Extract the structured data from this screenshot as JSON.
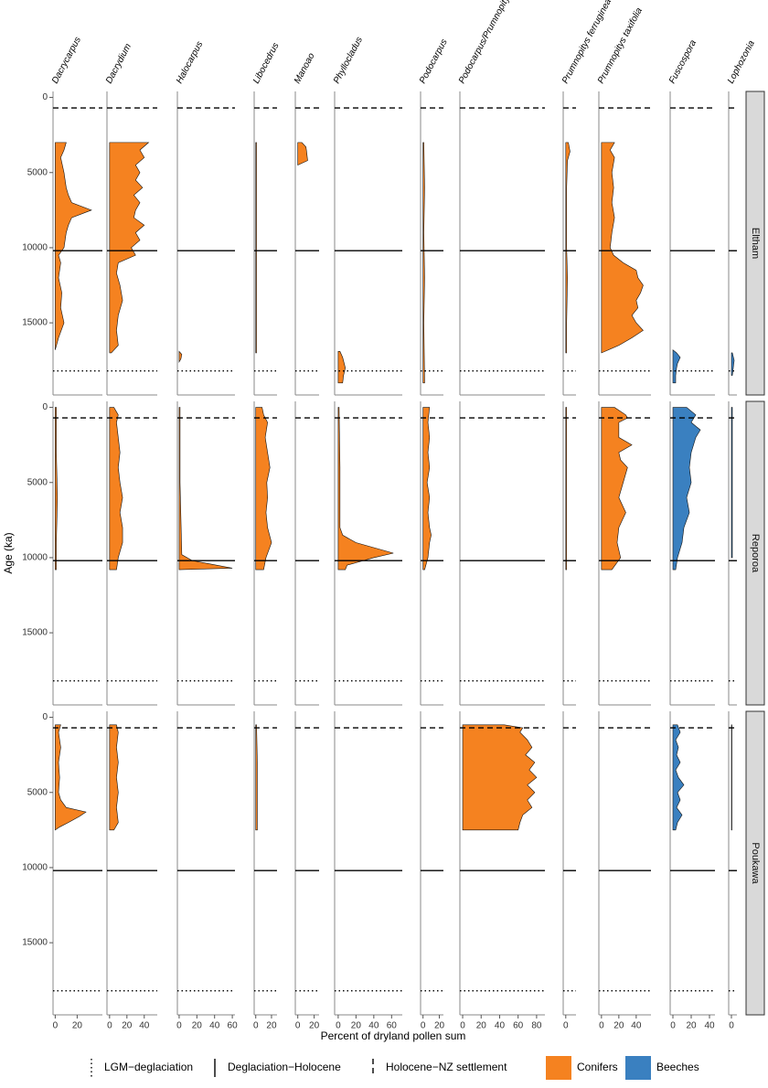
{
  "chart_data": {
    "type": "area",
    "y_label": "Age (ka)",
    "x_label": "Percent of dryland pollen sum",
    "ylim": [
      -400,
      19800
    ],
    "y_reversed": true,
    "yticks": [
      0,
      5000,
      10000,
      15000
    ],
    "boundaries": [
      {
        "name": "LGM−deglaciation",
        "value": 18200,
        "style": "dotted"
      },
      {
        "name": "Deglaciation−Holocene",
        "value": 10200,
        "style": "solid"
      },
      {
        "name": "Holocene−NZ settlement",
        "value": 700,
        "style": "dashed"
      }
    ],
    "legend": [
      {
        "name": "Conifers",
        "color": "#f58220"
      },
      {
        "name": "Beeches",
        "color": "#3a80c0"
      }
    ],
    "taxa": [
      {
        "name": "Dacrycarpus",
        "color": "#f58220",
        "xlim": [
          -2,
          43
        ],
        "xticks": [
          0,
          20
        ]
      },
      {
        "name": "Dacrydium",
        "color": "#f58220",
        "xlim": [
          -3,
          55
        ],
        "xticks": [
          0,
          20,
          40
        ]
      },
      {
        "name": "Halocarpus",
        "color": "#f58220",
        "xlim": [
          -2,
          63
        ],
        "xticks": [
          0,
          20,
          40,
          60
        ]
      },
      {
        "name": "Libocedrus",
        "color": "#f58220",
        "xlim": [
          -2,
          27
        ],
        "xticks": [
          0,
          20
        ]
      },
      {
        "name": "Manoao",
        "color": "#f58220",
        "xlim": [
          -3,
          26
        ],
        "xticks": [
          0,
          20
        ]
      },
      {
        "name": "Phyllocladus",
        "color": "#f58220",
        "xlim": [
          -4,
          72
        ],
        "xticks": [
          0,
          20,
          40,
          60
        ]
      },
      {
        "name": "Podocarpus",
        "color": "#f58220",
        "xlim": [
          -3,
          25
        ],
        "xticks": [
          0,
          20
        ]
      },
      {
        "name": "Podocarpus/Prumnopitys",
        "color": "#f58220",
        "xlim": [
          -3,
          89
        ],
        "xticks": [
          0,
          20,
          40,
          60,
          80
        ]
      },
      {
        "name": "Prumnopitys ferruginea",
        "color": "#f58220",
        "xlim": [
          -3,
          12
        ],
        "xticks": [
          0
        ]
      },
      {
        "name": "Prumnopitys taxifolia",
        "color": "#f58220",
        "xlim": [
          -3,
          57
        ],
        "xticks": [
          0,
          20,
          40
        ]
      },
      {
        "name": "Fuscospora",
        "color": "#3a80c0",
        "xlim": [
          -3,
          46
        ],
        "xticks": [
          0,
          20,
          40
        ]
      },
      {
        "name": "Lophozonia",
        "color": "#3a80c0",
        "xlim": [
          -3,
          6
        ],
        "xticks": [
          0
        ]
      }
    ],
    "sites": [
      {
        "name": "Eltham",
        "records": [
          {
            "age": [
              3000,
              3500,
              4000,
              5000,
              6000,
              6500,
              7000,
              7500,
              8000,
              8500,
              9000,
              10000,
              10500,
              11000,
              12000,
              13000,
              14000,
              15000,
              16000,
              16800
            ],
            "values": [
              10,
              8,
              5,
              8,
              10,
              12,
              15,
              33,
              15,
              12,
              10,
              8,
              3,
              5,
              3,
              6,
              5,
              8,
              3,
              0
            ]
          },
          {
            "age": [
              3000,
              3500,
              4000,
              4500,
              5000,
              5500,
              6000,
              6500,
              7000,
              7500,
              8000,
              8500,
              9000,
              9500,
              10000,
              10500,
              11000,
              11700,
              12500,
              13500,
              14500,
              15500,
              16500,
              17000
            ],
            "values": [
              45,
              35,
              40,
              30,
              35,
              30,
              38,
              28,
              35,
              30,
              28,
              40,
              30,
              35,
              25,
              30,
              10,
              8,
              12,
              15,
              10,
              8,
              10,
              2
            ]
          },
          {
            "age": [
              16900,
              17100,
              17400,
              17600
            ],
            "values": [
              0,
              3,
              2,
              0
            ]
          },
          {
            "age": [
              3000,
              8000,
              12000,
              17000
            ],
            "values": [
              1,
              1,
              1,
              1
            ]
          },
          {
            "age": [
              3000,
              3300,
              3700,
              4200,
              4500
            ],
            "values": [
              5,
              10,
              11,
              12,
              0
            ]
          },
          {
            "age": [
              16900,
              17300,
              18000,
              18500,
              19000
            ],
            "values": [
              2,
              5,
              8,
              6,
              5
            ]
          },
          {
            "age": [
              3000,
              6000,
              9000,
              12000,
              15000,
              19000
            ],
            "values": [
              1,
              2,
              1,
              2,
              1,
              2
            ]
          },
          null,
          {
            "age": [
              3000,
              3600,
              4200,
              6000,
              10000,
              12000,
              15000,
              17000
            ],
            "values": [
              3,
              5,
              2,
              1,
              1,
              2,
              1,
              1
            ]
          },
          {
            "age": [
              3000,
              3500,
              4000,
              5000,
              6000,
              7000,
              8000,
              9000,
              10000,
              10500,
              11000,
              11500,
              12000,
              12500,
              13000,
              13500,
              14000,
              14500,
              15000,
              15500,
              16000,
              16500,
              17000
            ],
            "values": [
              15,
              10,
              15,
              12,
              14,
              12,
              15,
              12,
              10,
              14,
              25,
              40,
              42,
              48,
              45,
              40,
              42,
              35,
              40,
              48,
              35,
              20,
              0
            ]
          },
          {
            "age": [
              16800,
              17000,
              17300,
              17700,
              18000,
              18500,
              19000
            ],
            "values": [
              0,
              4,
              8,
              5,
              4,
              3,
              3
            ]
          },
          {
            "age": [
              17000,
              17500,
              18000,
              18500
            ],
            "values": [
              1,
              3,
              2,
              1
            ]
          }
        ]
      },
      {
        "name": "Reporoa",
        "records": [
          {
            "age": [
              0,
              3000,
              6000,
              9000,
              10800
            ],
            "values": [
              1,
              1,
              2,
              1,
              1
            ]
          },
          {
            "age": [
              0,
              500,
              1000,
              2000,
              3000,
              4000,
              5000,
              6000,
              7000,
              8000,
              9000,
              10000,
              10800
            ],
            "values": [
              5,
              10,
              8,
              10,
              12,
              10,
              12,
              15,
              12,
              15,
              15,
              10,
              8
            ]
          },
          {
            "age": [
              0,
              5000,
              9800,
              10200,
              10700,
              10800
            ],
            "values": [
              1,
              1,
              3,
              15,
              60,
              0
            ]
          },
          {
            "age": [
              0,
              500,
              1000,
              2000,
              3000,
              4000,
              5000,
              6000,
              7000,
              8000,
              9000,
              10000,
              10800
            ],
            "values": [
              8,
              10,
              15,
              12,
              15,
              18,
              14,
              15,
              13,
              15,
              20,
              13,
              10
            ]
          },
          null,
          {
            "age": [
              0,
              4000,
              8000,
              8500,
              9000,
              9700,
              10000,
              10500,
              10800
            ],
            "values": [
              1,
              2,
              2,
              5,
              20,
              62,
              40,
              10,
              8
            ]
          },
          {
            "age": [
              0,
              1000,
              2000,
              3000,
              4000,
              5000,
              6000,
              7000,
              8000,
              8500,
              9000,
              10000,
              10800
            ],
            "values": [
              8,
              6,
              8,
              6,
              8,
              5,
              8,
              6,
              8,
              10,
              8,
              6,
              2
            ]
          },
          null,
          {
            "age": [
              0,
              5000,
              10800
            ],
            "values": [
              1,
              1,
              1
            ]
          },
          {
            "age": [
              0,
              500,
              700,
              1000,
              2000,
              2500,
              3000,
              3500,
              4000,
              5000,
              6000,
              7000,
              8000,
              9000,
              10000,
              10800
            ],
            "values": [
              15,
              28,
              30,
              20,
              20,
              35,
              20,
              22,
              30,
              25,
              20,
              28,
              20,
              18,
              22,
              12
            ]
          },
          {
            "age": [
              0,
              500,
              1000,
              1500,
              2000,
              3000,
              4000,
              5000,
              6000,
              7000,
              8000,
              9000,
              10000,
              10800
            ],
            "values": [
              15,
              25,
              20,
              30,
              25,
              20,
              18,
              20,
              15,
              18,
              12,
              10,
              5,
              3
            ]
          },
          {
            "age": [
              0,
              5000,
              10000
            ],
            "values": [
              1,
              1,
              1
            ]
          }
        ]
      },
      {
        "name": "Poukawa",
        "records": [
          {
            "age": [
              500,
              1000,
              2000,
              3000,
              4000,
              5000,
              5500,
              6000,
              6300,
              6600,
              7000,
              7300,
              7500
            ],
            "values": [
              5,
              3,
              5,
              3,
              4,
              3,
              5,
              10,
              28,
              22,
              12,
              4,
              0
            ]
          },
          {
            "age": [
              500,
              1000,
              2000,
              3000,
              4000,
              5000,
              6000,
              7000,
              7500
            ],
            "values": [
              8,
              10,
              8,
              10,
              8,
              10,
              8,
              10,
              5
            ]
          },
          null,
          {
            "age": [
              500,
              3000,
              6000,
              7500
            ],
            "values": [
              1,
              2,
              2,
              2
            ]
          },
          null,
          null,
          null,
          {
            "age": [
              500,
              700,
              1000,
              1500,
              2000,
              2500,
              3000,
              3500,
              4000,
              4500,
              5000,
              5500,
              6000,
              6500,
              7000,
              7500
            ],
            "values": [
              45,
              65,
              62,
              70,
              75,
              68,
              78,
              72,
              80,
              70,
              78,
              70,
              75,
              65,
              62,
              60
            ]
          },
          null,
          null,
          {
            "age": [
              500,
              1000,
              1500,
              2000,
              2500,
              3000,
              3500,
              4000,
              4500,
              5000,
              5500,
              6000,
              6500,
              7000,
              7500
            ],
            "values": [
              5,
              8,
              3,
              6,
              4,
              8,
              3,
              6,
              12,
              5,
              8,
              4,
              10,
              5,
              3
            ]
          },
          {
            "age": [
              500,
              7500
            ],
            "values": [
              0.5,
              0.5
            ]
          }
        ]
      }
    ]
  }
}
